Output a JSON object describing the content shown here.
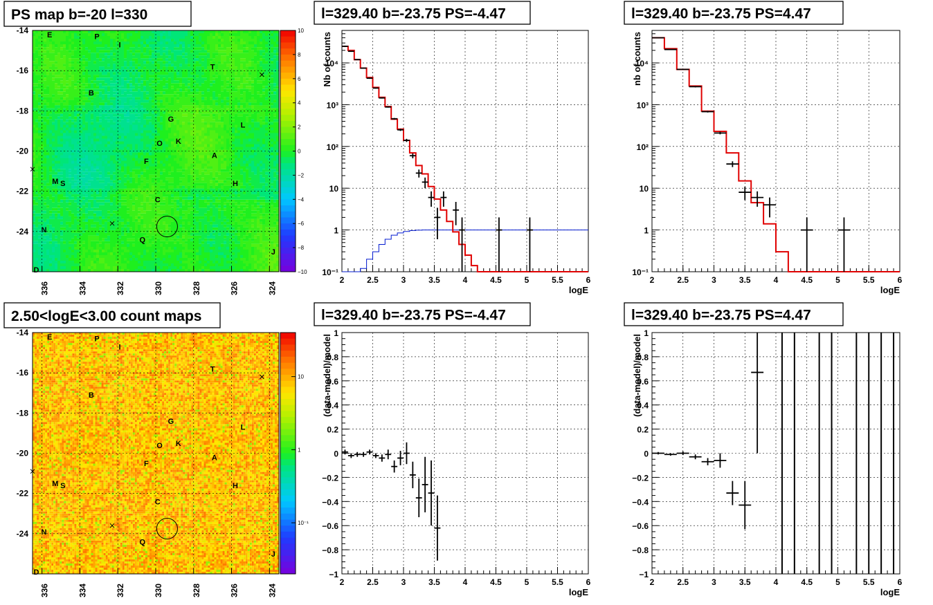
{
  "chart_data": [
    {
      "id": "psmap",
      "type": "heatmap",
      "title": "PS map b=-20 l=330",
      "x_ticks": [
        "336",
        "334",
        "332",
        "330",
        "328",
        "326",
        "324"
      ],
      "y_ticks": [
        "-14",
        "-16",
        "-18",
        "-20",
        "-22",
        "-24"
      ],
      "xlim": [
        336.5,
        323.5
      ],
      "ylim": [
        -26,
        -14
      ],
      "colorbar": {
        "min": -10,
        "max": 10,
        "ticks": [
          "10",
          "8",
          "6",
          "4",
          "2",
          "0",
          "−2",
          "−4",
          "−6",
          "−8",
          "−10"
        ]
      },
      "markers": [
        {
          "label": "E",
          "l": 335.6,
          "b": -14.2
        },
        {
          "label": "P",
          "l": 333.1,
          "b": -14.3
        },
        {
          "label": "I",
          "l": 331.9,
          "b": -14.7
        },
        {
          "label": "T",
          "l": 327.0,
          "b": -15.8
        },
        {
          "label": "B",
          "l": 333.4,
          "b": -17.1
        },
        {
          "label": "G",
          "l": 329.2,
          "b": -18.4
        },
        {
          "label": "L",
          "l": 325.4,
          "b": -18.7
        },
        {
          "label": "O",
          "l": 329.8,
          "b": -19.6
        },
        {
          "label": "K",
          "l": 328.8,
          "b": -19.5
        },
        {
          "label": "F",
          "l": 330.5,
          "b": -20.5
        },
        {
          "label": "A",
          "l": 326.9,
          "b": -20.2
        },
        {
          "label": "M",
          "l": 335.3,
          "b": -21.5
        },
        {
          "label": "S",
          "l": 334.9,
          "b": -21.6
        },
        {
          "label": "H",
          "l": 325.8,
          "b": -21.6
        },
        {
          "label": "C",
          "l": 329.9,
          "b": -22.4
        },
        {
          "label": "N",
          "l": 335.9,
          "b": -23.9
        },
        {
          "label": "Q",
          "l": 330.7,
          "b": -24.4
        },
        {
          "label": "J",
          "l": 323.8,
          "b": -25.0
        },
        {
          "label": "D",
          "l": 336.3,
          "b": -25.9
        }
      ],
      "crosses": [
        {
          "l": 324.4,
          "b": -16.2
        },
        {
          "l": 336.5,
          "b": -20.9
        },
        {
          "l": 332.3,
          "b": -23.6
        }
      ],
      "circle": {
        "l": 329.4,
        "b": -23.75
      }
    },
    {
      "id": "countmap",
      "type": "heatmap",
      "title": "2.50<logE<3.00 count maps",
      "x_ticks": [
        "336",
        "334",
        "332",
        "330",
        "328",
        "326",
        "324"
      ],
      "y_ticks": [
        "-14",
        "-16",
        "-18",
        "-20",
        "-22",
        "-24"
      ],
      "xlim": [
        336.5,
        323.5
      ],
      "ylim": [
        -26,
        -14
      ],
      "colorbar": {
        "ticks": [
          "10",
          "1",
          "10⁻¹"
        ],
        "log": true,
        "min": 0.02,
        "max": 40
      }
    },
    {
      "id": "spec1",
      "type": "line",
      "title": "l=329.40 b=-23.75 PS=-4.47",
      "xlabel": "logE",
      "ylabel": "Nb of counts",
      "xlim": [
        2,
        6
      ],
      "ylim": [
        0.1,
        60000
      ],
      "ylog": true,
      "x_ticks": [
        "2",
        "2.5",
        "3",
        "3.5",
        "4",
        "4.5",
        "5",
        "5.5",
        "6"
      ],
      "y_ticks": [
        {
          "label": "10⁻¹",
          "v": 0.1
        },
        {
          "label": "1",
          "v": 1
        },
        {
          "label": "10",
          "v": 10
        },
        {
          "label": "10²",
          "v": 100
        },
        {
          "label": "10³",
          "v": 1000
        },
        {
          "label": "10⁴",
          "v": 10000
        }
      ],
      "model_edges": [
        2.0,
        2.1,
        2.2,
        2.3,
        2.4,
        2.5,
        2.6,
        2.7,
        2.8,
        2.9,
        3.0,
        3.1,
        3.2,
        3.3,
        3.4,
        3.5,
        3.6,
        3.7,
        3.8,
        3.9,
        4.0,
        4.1,
        4.2,
        6.0
      ],
      "model_values": [
        25000,
        20000,
        12000,
        7500,
        4500,
        2600,
        1500,
        900,
        450,
        260,
        140,
        70,
        35,
        22,
        11,
        5.5,
        3,
        1.6,
        0.9,
        0.45,
        0.25,
        0.14,
        0.1
      ],
      "sensitivity_edges": [
        2.0,
        2.1,
        2.2,
        2.3,
        2.4,
        2.5,
        2.6,
        2.7,
        2.8,
        2.9,
        3.0,
        3.1,
        3.2,
        3.3,
        3.4,
        3.5,
        3.6,
        3.7,
        3.8,
        3.9,
        4.0,
        6.0
      ],
      "sensitivity_values": [
        0.1,
        0.1,
        0.1,
        0.12,
        0.2,
        0.3,
        0.45,
        0.6,
        0.75,
        0.85,
        0.92,
        0.97,
        0.99,
        1,
        1,
        1,
        1,
        1,
        1,
        1,
        1
      ],
      "data_points": [
        {
          "x": 2.05,
          "y": 25000,
          "lo": 24000,
          "hi": 26000
        },
        {
          "x": 2.15,
          "y": 19000,
          "lo": 18500,
          "hi": 19500
        },
        {
          "x": 2.25,
          "y": 12000,
          "lo": 11700,
          "hi": 12300
        },
        {
          "x": 2.35,
          "y": 7500,
          "lo": 7300,
          "hi": 7700
        },
        {
          "x": 2.45,
          "y": 4300,
          "lo": 4150,
          "hi": 4450
        },
        {
          "x": 2.55,
          "y": 2500,
          "lo": 2420,
          "hi": 2580
        },
        {
          "x": 2.65,
          "y": 1450,
          "lo": 1400,
          "hi": 1500
        },
        {
          "x": 2.75,
          "y": 880,
          "lo": 850,
          "hi": 910
        },
        {
          "x": 2.85,
          "y": 460,
          "lo": 440,
          "hi": 480
        },
        {
          "x": 2.95,
          "y": 250,
          "lo": 235,
          "hi": 265
        },
        {
          "x": 3.05,
          "y": 140,
          "lo": 128,
          "hi": 152
        },
        {
          "x": 3.15,
          "y": 60,
          "lo": 52,
          "hi": 68
        },
        {
          "x": 3.25,
          "y": 23,
          "lo": 18,
          "hi": 28
        },
        {
          "x": 3.35,
          "y": 14,
          "lo": 10,
          "hi": 18
        },
        {
          "x": 3.45,
          "y": 6,
          "lo": 3.6,
          "hi": 8.4
        },
        {
          "x": 3.55,
          "y": 2,
          "lo": 0.6,
          "hi": 3.4
        },
        {
          "x": 3.65,
          "y": 6,
          "lo": 3.6,
          "hi": 8.4
        },
        {
          "x": 3.85,
          "y": 3,
          "lo": 1.3,
          "hi": 4.7
        },
        {
          "x": 3.95,
          "y": 1,
          "lo": 0.1,
          "hi": 2
        },
        {
          "x": 4.55,
          "y": 1,
          "lo": 0.1,
          "hi": 2
        },
        {
          "x": 5.05,
          "y": 1,
          "lo": 0.1,
          "hi": 2
        }
      ]
    },
    {
      "id": "spec2",
      "type": "line",
      "title": "l=329.40 b=-23.75 PS=4.47",
      "xlabel": "logE",
      "ylabel": "nb of counts",
      "xlim": [
        2,
        6
      ],
      "ylim": [
        0.1,
        60000
      ],
      "ylog": true,
      "x_ticks": [
        "2",
        "2.5",
        "3",
        "3.5",
        "4",
        "4.5",
        "5",
        "5.5",
        "6"
      ],
      "y_ticks": [
        {
          "label": "10⁻¹",
          "v": 0.1
        },
        {
          "label": "1",
          "v": 1
        },
        {
          "label": "10",
          "v": 10
        },
        {
          "label": "10²",
          "v": 100
        },
        {
          "label": "10³",
          "v": 1000
        },
        {
          "label": "10⁴",
          "v": 10000
        }
      ],
      "model_edges": [
        2.0,
        2.2,
        2.4,
        2.6,
        2.8,
        3.0,
        3.2,
        3.4,
        3.6,
        3.8,
        4.0,
        4.2,
        6.0
      ],
      "model_values": [
        40000,
        22000,
        7000,
        2800,
        700,
        230,
        70,
        15,
        4.5,
        1.4,
        0.3,
        0.1
      ],
      "data_points": [
        {
          "x": 2.1,
          "y": 40000,
          "lo": 39500,
          "hi": 40500
        },
        {
          "x": 2.3,
          "y": 21000,
          "lo": 20600,
          "hi": 21400
        },
        {
          "x": 2.5,
          "y": 7000,
          "lo": 6850,
          "hi": 7150
        },
        {
          "x": 2.7,
          "y": 2700,
          "lo": 2600,
          "hi": 2800
        },
        {
          "x": 2.9,
          "y": 680,
          "lo": 650,
          "hi": 710
        },
        {
          "x": 3.1,
          "y": 210,
          "lo": 195,
          "hi": 225
        },
        {
          "x": 3.3,
          "y": 38,
          "lo": 32,
          "hi": 44
        },
        {
          "x": 3.5,
          "y": 8,
          "lo": 5.2,
          "hi": 10.8
        },
        {
          "x": 3.7,
          "y": 6,
          "lo": 3.6,
          "hi": 8.4
        },
        {
          "x": 3.9,
          "y": 4,
          "lo": 2,
          "hi": 6
        },
        {
          "x": 4.5,
          "y": 1,
          "lo": 0.1,
          "hi": 2
        },
        {
          "x": 5.1,
          "y": 1,
          "lo": 0.1,
          "hi": 2
        }
      ]
    },
    {
      "id": "resid1",
      "type": "scatter",
      "title": "l=329.40 b=-23.75 PS=-4.47",
      "xlabel": "logE",
      "ylabel": "(data-model)/model",
      "xlim": [
        2,
        6
      ],
      "ylim": [
        -1,
        1
      ],
      "x_ticks": [
        "2",
        "2.5",
        "3",
        "3.5",
        "4",
        "4.5",
        "5",
        "5.5",
        "6"
      ],
      "y_ticks": [
        {
          "label": "−1",
          "v": -1
        },
        {
          "label": "−0.8",
          "v": -0.8
        },
        {
          "label": "−0.6",
          "v": -0.6
        },
        {
          "label": "−0.4",
          "v": -0.4
        },
        {
          "label": "−0.2",
          "v": -0.2
        },
        {
          "label": "0",
          "v": 0
        },
        {
          "label": "0.2",
          "v": 0.2
        },
        {
          "label": "0.4",
          "v": 0.4
        },
        {
          "label": "0.6",
          "v": 0.6
        },
        {
          "label": "0.8",
          "v": 0.8
        },
        {
          "label": "1",
          "v": 1
        }
      ],
      "data_points": [
        {
          "x": 2.05,
          "y": 0.01,
          "e": 0.02
        },
        {
          "x": 2.15,
          "y": -0.02,
          "e": 0.02
        },
        {
          "x": 2.25,
          "y": -0.01,
          "e": 0.02
        },
        {
          "x": 2.35,
          "y": -0.01,
          "e": 0.02
        },
        {
          "x": 2.45,
          "y": 0.01,
          "e": 0.02
        },
        {
          "x": 2.55,
          "y": -0.02,
          "e": 0.02
        },
        {
          "x": 2.65,
          "y": -0.04,
          "e": 0.03
        },
        {
          "x": 2.75,
          "y": -0.01,
          "e": 0.04
        },
        {
          "x": 2.85,
          "y": -0.11,
          "e": 0.05
        },
        {
          "x": 2.95,
          "y": -0.04,
          "e": 0.06
        },
        {
          "x": 3.05,
          "y": 0.0,
          "e": 0.09
        },
        {
          "x": 3.15,
          "y": -0.18,
          "e": 0.11
        },
        {
          "x": 3.25,
          "y": -0.37,
          "e": 0.16
        },
        {
          "x": 3.35,
          "y": -0.26,
          "e": 0.23
        },
        {
          "x": 3.45,
          "y": -0.33,
          "e": 0.27
        },
        {
          "x": 3.55,
          "y": -0.62,
          "e": 0.27
        }
      ]
    },
    {
      "id": "resid2",
      "type": "scatter",
      "title": "l=329.40 b=-23.75 PS=4.47",
      "xlabel": "logE",
      "ylabel": "(data-model)/model",
      "xlim": [
        2,
        6
      ],
      "ylim": [
        -1,
        1
      ],
      "x_ticks": [
        "2",
        "2.5",
        "3",
        "3.5",
        "4",
        "4.5",
        "5",
        "5.5",
        "6"
      ],
      "y_ticks": [
        {
          "label": "−1",
          "v": -1
        },
        {
          "label": "−0.8",
          "v": -0.8
        },
        {
          "label": "−0.6",
          "v": -0.6
        },
        {
          "label": "−0.4",
          "v": -0.4
        },
        {
          "label": "−0.2",
          "v": -0.2
        },
        {
          "label": "0",
          "v": 0
        },
        {
          "label": "0.2",
          "v": 0.2
        },
        {
          "label": "0.4",
          "v": 0.4
        },
        {
          "label": "0.6",
          "v": 0.6
        },
        {
          "label": "0.8",
          "v": 0.8
        },
        {
          "label": "1",
          "v": 1
        }
      ],
      "data_points": [
        {
          "x": 2.1,
          "y": 0.0,
          "e": 0.01
        },
        {
          "x": 2.3,
          "y": -0.01,
          "e": 0.01
        },
        {
          "x": 2.5,
          "y": 0.0,
          "e": 0.015
        },
        {
          "x": 2.7,
          "y": -0.03,
          "e": 0.02
        },
        {
          "x": 2.9,
          "y": -0.07,
          "e": 0.03
        },
        {
          "x": 3.1,
          "y": -0.06,
          "e": 0.06
        },
        {
          "x": 3.3,
          "y": -0.33,
          "e": 0.1
        },
        {
          "x": 3.5,
          "y": -0.43,
          "e": 0.2
        },
        {
          "x": 3.7,
          "y": 0.67,
          "e": 0.67
        }
      ],
      "vertical_lines": [
        4.1,
        4.3,
        4.7,
        4.9,
        5.3,
        5.5,
        5.7,
        5.9
      ]
    }
  ]
}
